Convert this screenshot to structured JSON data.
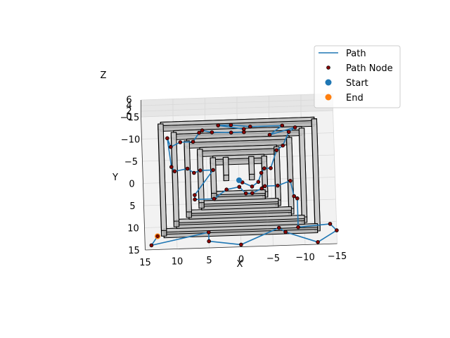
{
  "chart_data": {
    "type": "3d-line",
    "title": "",
    "xlabel": "X",
    "ylabel": "Y",
    "zlabel": "Z",
    "xlim": [
      15,
      -15
    ],
    "ylim": [
      -15,
      15
    ],
    "zlim": [
      0,
      6
    ],
    "x_ticks": [
      "15",
      "10",
      "5",
      "0",
      "−5",
      "−10",
      "−15"
    ],
    "x_tick_values": [
      15,
      10,
      5,
      0,
      -5,
      -10,
      -15
    ],
    "y_ticks": [
      "−15",
      "−10",
      "−5",
      "0",
      "5",
      "10",
      "15"
    ],
    "y_tick_values": [
      -15,
      -10,
      -5,
      0,
      5,
      10,
      15
    ],
    "z_ticks": [
      "0",
      "2",
      "4",
      "6"
    ],
    "z_tick_values": [
      0,
      2,
      4,
      6
    ],
    "grid": true,
    "legend_position": "top-right",
    "legend": [
      {
        "label": "Path",
        "kind": "line",
        "color": "#1f77b4"
      },
      {
        "label": "Path Node",
        "kind": "node",
        "color": "#8b0000"
      },
      {
        "label": "Start",
        "kind": "marker",
        "color": "#1f77b4"
      },
      {
        "label": "End",
        "kind": "marker",
        "color": "#ff7f0e"
      }
    ],
    "walls": [
      [
        [
          12,
          -12
        ],
        [
          -12,
          -12
        ],
        [
          -12,
          12
        ],
        [
          12,
          12
        ],
        [
          12,
          -12
        ]
      ],
      [
        [
          10,
          -10
        ],
        [
          -10,
          -10
        ],
        [
          -10,
          10
        ],
        [
          10,
          10
        ],
        [
          10,
          -10
        ]
      ],
      [
        [
          8,
          -8
        ],
        [
          -8,
          -8
        ],
        [
          -8,
          8
        ],
        [
          8,
          8
        ],
        [
          8,
          -8
        ]
      ],
      [
        [
          6,
          -6
        ],
        [
          -6,
          -6
        ],
        [
          -6,
          6
        ],
        [
          6,
          6
        ],
        [
          6,
          -6
        ]
      ],
      [
        [
          4,
          -4
        ],
        [
          -4,
          -4
        ],
        [
          -4,
          4
        ],
        [
          4,
          4
        ],
        [
          4,
          -4
        ]
      ],
      [
        [
          2,
          -4
        ],
        [
          2,
          0
        ]
      ],
      [
        [
          -2,
          -4
        ],
        [
          -2,
          0
        ]
      ]
    ],
    "wall_height": 2,
    "path": [
      [
        0,
        0
      ],
      [
        -0.5,
        0.5
      ],
      [
        -2,
        1.5
      ],
      [
        -3,
        0.5
      ],
      [
        -3.5,
        -1.5
      ],
      [
        -4,
        -2.5
      ],
      [
        -5,
        -2.5
      ],
      [
        -6,
        -6.5
      ],
      [
        -7,
        -7.5
      ],
      [
        -8,
        -10.5
      ],
      [
        -9,
        -11.5
      ],
      [
        -5,
        -10
      ],
      [
        -7,
        -12
      ],
      [
        -2,
        -12
      ],
      [
        1,
        -12.5
      ],
      [
        3,
        -12.5
      ],
      [
        -1,
        -11.5
      ],
      [
        -1,
        -10.8
      ],
      [
        1,
        -10.8
      ],
      [
        4,
        -11
      ],
      [
        5.5,
        -11.5
      ],
      [
        6,
        -11
      ],
      [
        7,
        -9
      ],
      [
        9,
        -9
      ],
      [
        10.5,
        -8
      ],
      [
        11,
        -10
      ],
      [
        10.5,
        -3.5
      ],
      [
        10,
        -2.5
      ],
      [
        8,
        -3
      ],
      [
        7,
        -2
      ],
      [
        6,
        -2.5
      ],
      [
        4,
        -2.5
      ],
      [
        7,
        3
      ],
      [
        7,
        4
      ],
      [
        4,
        4
      ],
      [
        2,
        2
      ],
      [
        0,
        1.5
      ],
      [
        -1,
        3
      ],
      [
        -2,
        3
      ],
      [
        -3.5,
        2
      ],
      [
        -4,
        1.5
      ],
      [
        -6,
        1.5
      ],
      [
        -8,
        0.5
      ],
      [
        -8.5,
        4
      ],
      [
        -9,
        4.5
      ],
      [
        -9,
        11
      ],
      [
        -14,
        10.5
      ],
      [
        -15,
        12
      ],
      [
        -12,
        14.5
      ],
      [
        -7,
        12
      ],
      [
        -6,
        11
      ],
      [
        0,
        14.5
      ],
      [
        5,
        13.5
      ],
      [
        5,
        11.5
      ],
      [
        14,
        14
      ],
      [
        13,
        12
      ]
    ],
    "start": [
      0,
      0
    ],
    "end": [
      13,
      12
    ]
  }
}
